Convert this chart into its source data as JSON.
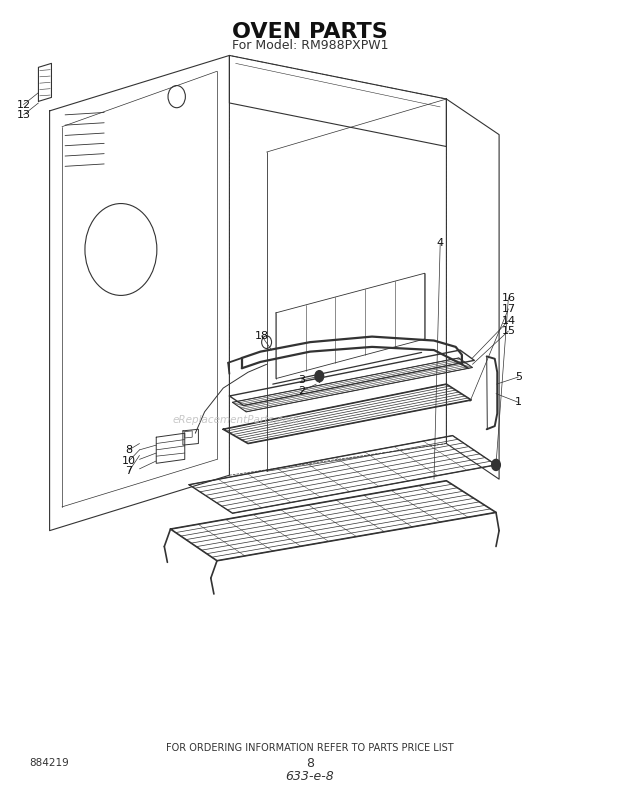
{
  "title": "OVEN PARTS",
  "subtitle": "For Model: RM988PXPW1",
  "footer_text": "FOR ORDERING INFORMATION REFER TO PARTS PRICE LIST",
  "page_number": "8",
  "doc_number": "633-e-8",
  "part_number_left": "884219",
  "background_color": "#ffffff",
  "line_color": "#333333",
  "title_fontsize": 16,
  "subtitle_fontsize": 9,
  "footer_fontsize": 7,
  "label_fontsize": 8,
  "watermark": "eReplacementParts.com"
}
